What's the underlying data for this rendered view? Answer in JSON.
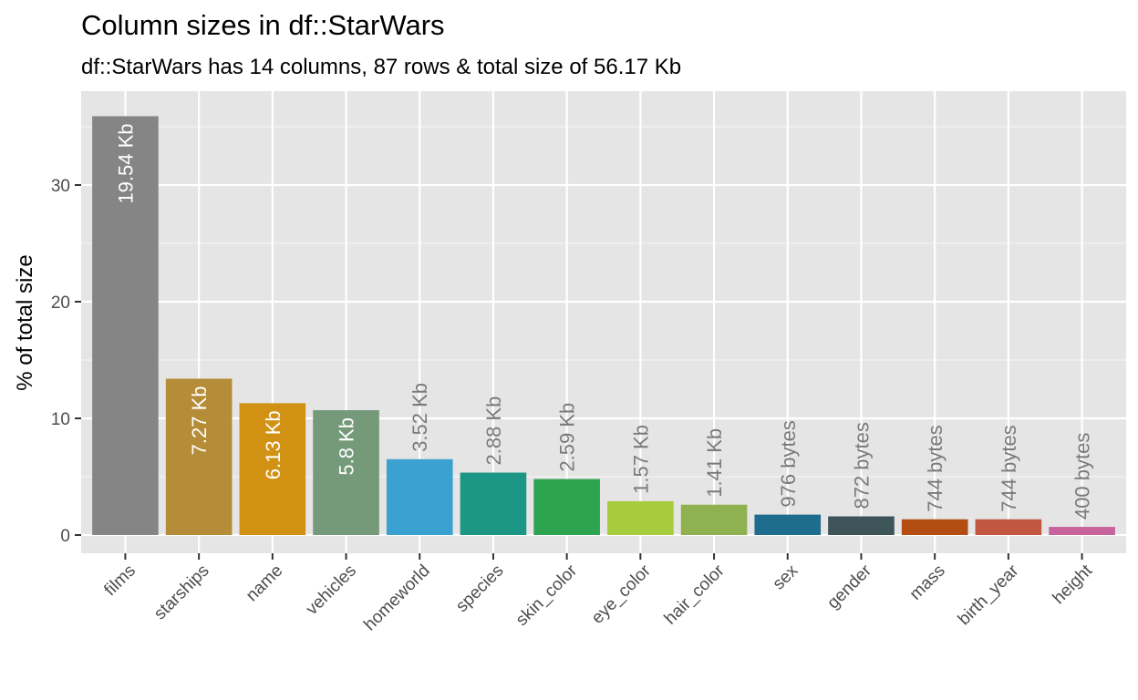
{
  "chart_data": {
    "type": "bar",
    "title": "Column sizes in df::StarWars",
    "subtitle": "df::StarWars has 14 columns, 87 rows & total size of 56.17 Kb",
    "xlabel": "",
    "ylabel": "% of total size",
    "ylim": [
      0,
      37.5
    ],
    "yticks": [
      0,
      10,
      20,
      30
    ],
    "grid": true,
    "legend": "none",
    "panel_background": "#e5e5e5",
    "categories": [
      "films",
      "starships",
      "name",
      "vehicles",
      "homeworld",
      "species",
      "skin_color",
      "eye_color",
      "hair_color",
      "sex",
      "gender",
      "mass",
      "birth_year",
      "height"
    ],
    "values": [
      35.9,
      13.4,
      11.3,
      10.7,
      6.5,
      5.35,
      4.8,
      2.9,
      2.6,
      1.75,
      1.6,
      1.35,
      1.35,
      0.7
    ],
    "labels": [
      "19.54 Kb",
      "7.27 Kb",
      "6.13 Kb",
      "5.8 Kb",
      "3.52 Kb",
      "2.88 Kb",
      "2.59 Kb",
      "1.57 Kb",
      "1.41 Kb",
      "976 bytes",
      "872 bytes",
      "744 bytes",
      "744 bytes",
      "400 bytes"
    ],
    "colors": [
      "#858585",
      "#b58c37",
      "#d19213",
      "#759a7a",
      "#3ba1d1",
      "#1c9685",
      "#2ea350",
      "#a6cb3d",
      "#90b150",
      "#1f6d8e",
      "#3d5559",
      "#b44d12",
      "#c2563f",
      "#c9639e"
    ]
  }
}
